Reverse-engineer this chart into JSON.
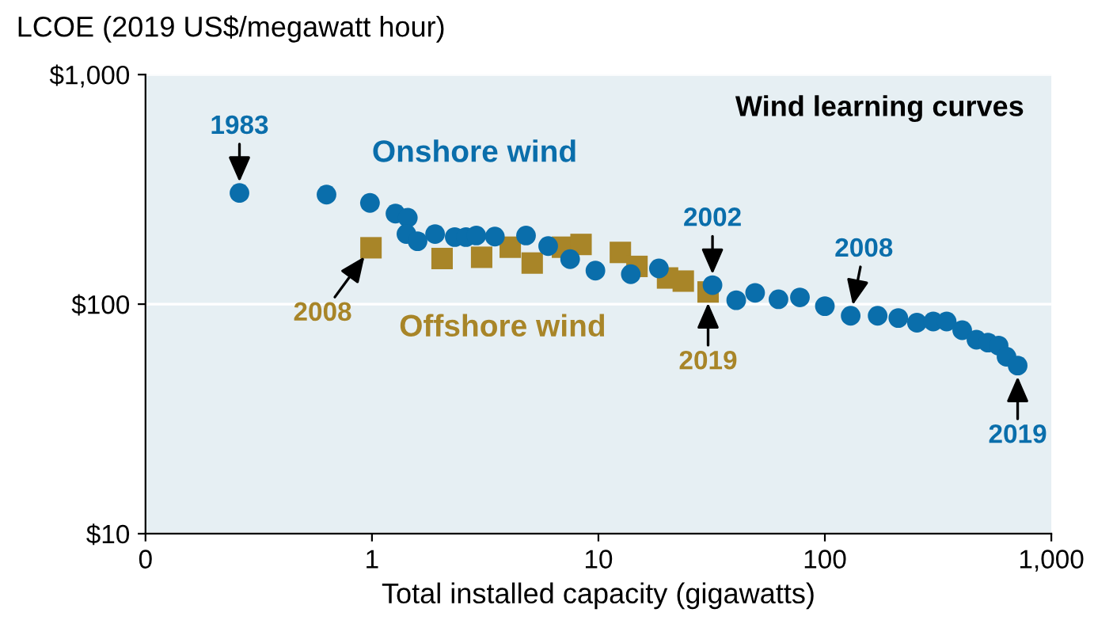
{
  "chart_data": {
    "type": "scatter",
    "xlabel": "Total installed capacity (gigawatts)",
    "ylabel": "LCOE (2019 US$/megawatt hour)",
    "log": "xy",
    "xlim": [
      0.1,
      1000
    ],
    "xticks": [
      {
        "value": 0.1,
        "label": "0"
      },
      1,
      10,
      100,
      {
        "value": 1000,
        "label": "1,000"
      }
    ],
    "ylim": [
      10,
      1000
    ],
    "yticks": [
      {
        "value": 10,
        "label": "$10"
      },
      {
        "value": 100,
        "label": "$100"
      },
      {
        "value": 1000,
        "label": "$1,000"
      }
    ],
    "grid": "y",
    "legend": false,
    "series": [
      {
        "name": "Onshore wind",
        "color": "#0a6eab",
        "marker": "circle",
        "x": [
          0.26,
          0.63,
          0.98,
          1.27,
          1.44,
          1.42,
          1.59,
          1.9,
          2.32,
          2.6,
          2.89,
          3.49,
          4.79,
          6.0,
          7.5,
          9.7,
          13.9,
          18.5,
          31.9,
          40.6,
          49.2,
          62.4,
          77.6,
          100,
          130,
          171,
          211,
          255,
          301,
          345,
          404,
          467,
          525,
          585,
          634,
          710
        ],
        "values": [
          305,
          300,
          276,
          248,
          238,
          202,
          188,
          202,
          196,
          196,
          199,
          197,
          199,
          179,
          157,
          140,
          135,
          143,
          121,
          104,
          112,
          105,
          107,
          98,
          89,
          89,
          87,
          83,
          84,
          84,
          77,
          70,
          68,
          66,
          59,
          54
        ]
      },
      {
        "name": "Offshore wind",
        "color": "#a88528",
        "marker": "square",
        "x": [
          0.99,
          2.04,
          3.05,
          4.08,
          5.1,
          6.94,
          8.38,
          12.5,
          14.8,
          20.2,
          23.7,
          30.5
        ],
        "values": [
          176,
          158,
          160,
          177,
          151,
          177,
          182,
          168,
          146,
          130,
          126,
          113
        ]
      }
    ],
    "annotations": [
      {
        "text": "1983",
        "x": 0.26,
        "y": 305
      },
      {
        "text": "2008",
        "x": 0.99,
        "y": 176
      },
      {
        "text": "2002",
        "x": 31.9,
        "y": 121
      },
      {
        "text": "2019",
        "x": 30.5,
        "y": 113
      },
      {
        "text": "2008",
        "x": 130,
        "y": 89
      },
      {
        "text": "2019",
        "x": 710,
        "y": 54
      },
      "Wind learning curves"
    ]
  }
}
